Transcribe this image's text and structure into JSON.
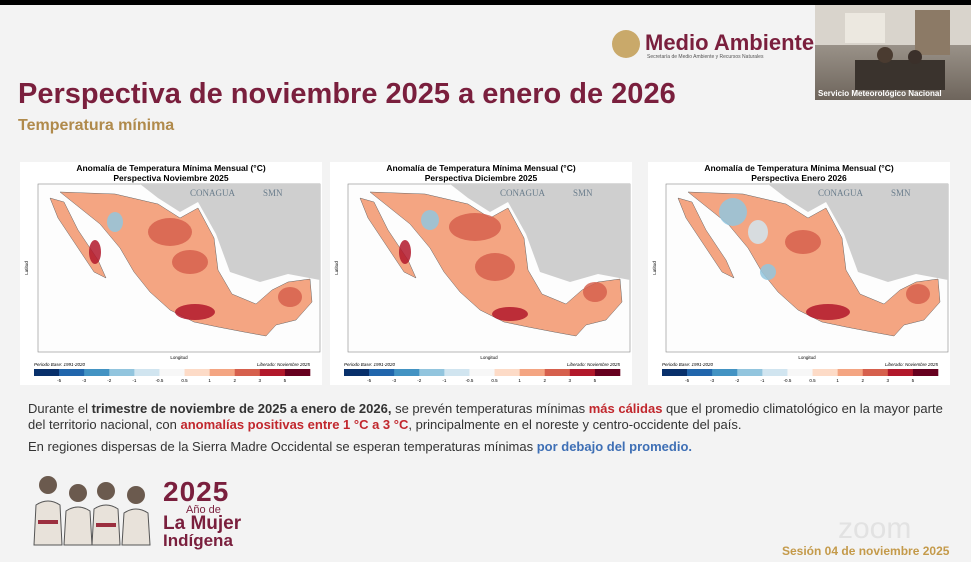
{
  "header": {
    "logo": "Medio Ambiente",
    "logo_sub": "Secretaría de Medio Ambiente y Recursos Naturales",
    "title": "Perspectiva de noviembre 2025 a enero de 2026",
    "subtitle": "Temperatura mínima"
  },
  "video": {
    "label": "Servicio Meteorológico Nacional"
  },
  "maps": [
    {
      "title": "Anomalía de Temperatura Mínima Mensual (°C)",
      "subtitle": "Perspectiva Noviembre 2025",
      "base": "Periodo Base: 1991-2020",
      "released": "Liberado: Noviembre 2025"
    },
    {
      "title": "Anomalía de Temperatura Mínima Mensual (°C)",
      "subtitle": "Perspectiva Diciembre 2025",
      "base": "Periodo Base: 1991-2020",
      "released": "Liberado: Noviembre 2025"
    },
    {
      "title": "Anomalía de Temperatura Mínima Mensual (°C)",
      "subtitle": "Perspectiva Enero 2026",
      "base": "Periodo Base: 1991-2020",
      "released": "Liberado: Noviembre 2025"
    }
  ],
  "map_labels": {
    "agency1": "CONAGUA",
    "agency2": "SMN",
    "xaxis": "Longitud",
    "yaxis": "Latitud"
  },
  "legend": {
    "values": [
      -5,
      -3,
      -2,
      -1,
      -0.5,
      0.5,
      1,
      2,
      3,
      5
    ],
    "colors": [
      "#08306b",
      "#2166ac",
      "#4393c3",
      "#92c5de",
      "#d1e5f0",
      "#f7f7f7",
      "#fddbc7",
      "#f4a582",
      "#d6604d",
      "#b2182b",
      "#67001f"
    ]
  },
  "body": [
    [
      {
        "text": "Durante el ",
        "style": "plain"
      },
      {
        "text": "trimestre de noviembre de 2025 a enero de 2026,",
        "style": "bold"
      },
      {
        "text": " se prevén temperaturas mínimas ",
        "style": "plain"
      },
      {
        "text": "más cálidas",
        "style": "red"
      },
      {
        "text": " que el promedio climatológico en la mayor parte del territorio nacional, con ",
        "style": "plain"
      },
      {
        "text": "anomalías positivas entre 1 °C a 3 °C",
        "style": "red"
      },
      {
        "text": ", principalmente en el noreste y centro-occidente del país.",
        "style": "plain"
      }
    ],
    [
      {
        "text": "En regiones dispersas de la Sierra Madre Occidental se esperan temperaturas mínimas ",
        "style": "plain"
      },
      {
        "text": "por debajo del promedio.",
        "style": "blue"
      }
    ]
  ],
  "footer": {
    "year": "2025",
    "line1": "Año de",
    "line2": "La Mujer",
    "line3": "Indígena",
    "session": "Sesión 04 de noviembre 2025",
    "watermark": "zoom"
  }
}
